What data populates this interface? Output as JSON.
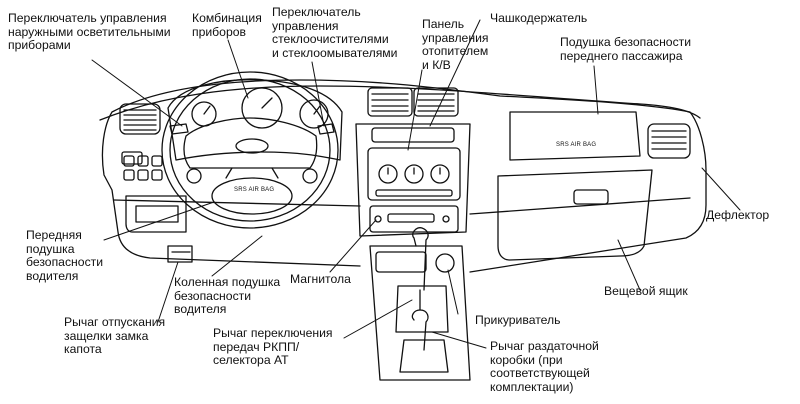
{
  "labels": {
    "ext_lights": "Переключатель управления\nнаружными осветительными\nприборами",
    "cluster": "Комбинация\nприборов",
    "wipers": "Переключатель\nуправления\nстеклоочистителями\nи стеклоомывателями",
    "heater": "Панель\nуправления\nотопителем\nи  К/В",
    "cupholder": "Чашкодержатель",
    "pass_airbag": "Подушка безопасности\nпереднего пассажира",
    "deflector": "Дефлектор",
    "driver_airbag": "Передняя\nподушка\nбезопасности\nводителя",
    "knee_airbag": "Коленная подушка\nбезопасности\nводителя",
    "radio": "Магнитола",
    "glovebox": "Вещевой ящик",
    "hood_release": "Рычаг отпускания\nзащелки  замка\nкапота",
    "gear_lever": "Рычаг переключения\nпередач РКПП/\nселектора АТ",
    "lighter": "Прикуриватель",
    "transfer": "Рычаг раздаточной\nкоробки  (при\nсоответствующей\nкомплектации)"
  },
  "badges": {
    "srs_wheel": "SRS AIR BAG",
    "srs_panel": "SRS AIR BAG"
  }
}
